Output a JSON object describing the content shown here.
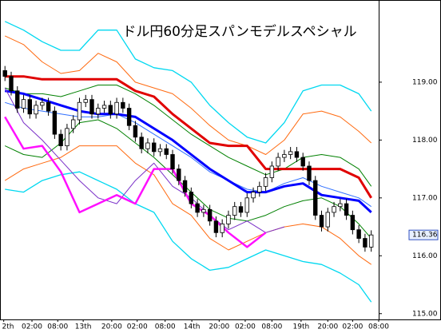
{
  "chart_data": {
    "type": "candlestick",
    "title": "ドル円60分足スパンモデルスペシャル",
    "xlim": [
      -0.8,
      60.2
    ],
    "ylim": [
      114.9,
      120.42
    ],
    "yticks": [
      {
        "value": 119,
        "label": "119.00"
      },
      {
        "value": 118,
        "label": "118.00"
      },
      {
        "value": 117,
        "label": "117.00"
      },
      {
        "value": 116,
        "label": "116.00"
      },
      {
        "value": 115,
        "label": "115.00"
      }
    ],
    "xticks": [
      {
        "value": -0.2,
        "label": "2th"
      },
      {
        "value": 4.35,
        "label": "02:00"
      },
      {
        "value": 8.5,
        "label": "08:00"
      },
      {
        "value": 12.6,
        "label": "13th"
      },
      {
        "value": 17.2,
        "label": "20:00"
      },
      {
        "value": 21.3,
        "label": "02:00"
      },
      {
        "value": 25.8,
        "label": "08:00"
      },
      {
        "value": 30.1,
        "label": "14th"
      },
      {
        "value": 34.5,
        "label": "20:00"
      },
      {
        "value": 38.7,
        "label": "02:00"
      },
      {
        "value": 43,
        "label": "08:00"
      },
      {
        "value": 47.7,
        "label": "19th"
      },
      {
        "value": 52,
        "label": "20:00"
      },
      {
        "value": 56,
        "label": "02:00"
      },
      {
        "value": 60.2,
        "label": "08:00"
      }
    ],
    "candles": {
      "x": [
        0,
        1,
        2,
        3,
        4,
        5,
        6,
        7,
        8,
        9,
        10,
        11,
        12,
        13,
        14,
        15,
        16,
        17,
        18,
        19,
        20,
        21,
        22,
        23,
        24,
        25,
        26,
        27,
        28,
        29,
        30,
        31,
        32,
        33,
        34,
        35,
        36,
        37,
        38,
        39,
        40,
        41,
        42,
        43,
        44,
        45,
        46,
        47,
        48,
        49,
        50,
        51,
        52,
        53,
        54,
        55,
        56,
        57,
        58,
        59
      ],
      "open": [
        119.2,
        119.1,
        118.85,
        118.55,
        118.7,
        118.45,
        118.6,
        118.65,
        118.5,
        118.1,
        117.9,
        118.2,
        118.35,
        118.65,
        118.7,
        118.45,
        118.55,
        118.6,
        118.45,
        118.65,
        118.55,
        118.25,
        118.05,
        117.85,
        117.95,
        117.8,
        117.85,
        117.75,
        117.5,
        117.3,
        117.1,
        116.9,
        116.75,
        116.8,
        116.6,
        116.4,
        116.55,
        116.7,
        116.85,
        116.75,
        117.0,
        117.1,
        117.2,
        117.35,
        117.55,
        117.7,
        117.75,
        117.8,
        117.7,
        117.55,
        117.3,
        116.7,
        116.5,
        116.75,
        116.85,
        116.9,
        116.7,
        116.45,
        116.3,
        116.15
      ],
      "high": [
        119.28,
        119.18,
        118.93,
        118.78,
        118.78,
        118.68,
        118.73,
        118.73,
        118.58,
        118.18,
        118.28,
        118.43,
        118.73,
        118.78,
        118.78,
        118.63,
        118.68,
        118.68,
        118.73,
        118.73,
        118.63,
        118.33,
        118.13,
        118.03,
        118.03,
        117.93,
        117.93,
        117.83,
        117.58,
        117.38,
        117.18,
        116.98,
        116.88,
        116.88,
        116.68,
        116.63,
        116.78,
        116.93,
        116.93,
        117.08,
        117.18,
        117.28,
        117.43,
        117.63,
        117.78,
        117.83,
        117.88,
        117.88,
        117.78,
        117.63,
        117.38,
        116.78,
        116.83,
        116.93,
        116.98,
        116.98,
        116.78,
        116.53,
        116.38,
        116.44
      ],
      "low": [
        119.02,
        118.77,
        118.47,
        118.47,
        118.37,
        118.37,
        118.52,
        118.42,
        118.02,
        117.82,
        117.82,
        118.12,
        118.27,
        118.57,
        118.37,
        118.37,
        118.47,
        118.37,
        118.37,
        118.47,
        118.17,
        117.97,
        117.77,
        117.77,
        117.72,
        117.72,
        117.67,
        117.42,
        117.22,
        117.02,
        116.82,
        116.67,
        116.67,
        116.52,
        116.32,
        116.32,
        116.47,
        116.62,
        116.67,
        116.67,
        116.92,
        117.02,
        117.12,
        117.27,
        117.47,
        117.62,
        117.67,
        117.62,
        117.47,
        117.22,
        116.62,
        116.42,
        116.42,
        116.67,
        116.77,
        116.62,
        116.37,
        116.22,
        116.07,
        116.07
      ],
      "close": [
        119.1,
        118.85,
        118.55,
        118.7,
        118.45,
        118.6,
        118.65,
        118.5,
        118.1,
        117.9,
        118.2,
        118.35,
        118.65,
        118.7,
        118.45,
        118.55,
        118.6,
        118.45,
        118.65,
        118.55,
        118.25,
        118.05,
        117.85,
        117.95,
        117.8,
        117.85,
        117.75,
        117.5,
        117.3,
        117.1,
        116.9,
        116.75,
        116.8,
        116.6,
        116.4,
        116.55,
        116.7,
        116.85,
        116.75,
        117.0,
        117.1,
        117.2,
        117.35,
        117.55,
        117.7,
        117.75,
        117.8,
        117.7,
        117.55,
        117.3,
        116.7,
        116.5,
        116.75,
        116.85,
        116.9,
        116.7,
        116.45,
        116.3,
        116.15,
        116.36
      ],
      "up_color": "#ffffff",
      "down_color": "#000000"
    },
    "x": [
      0,
      3,
      6,
      9,
      12,
      15,
      18,
      21,
      24,
      27,
      30,
      33,
      36,
      39,
      42,
      45,
      48,
      51,
      54,
      57,
      59
    ],
    "series": [
      {
        "color": "#00d8f0",
        "width": 1.3,
        "values": [
          120.05,
          119.9,
          119.7,
          119.55,
          119.55,
          119.9,
          119.9,
          119.4,
          119.25,
          119.2,
          119.0,
          118.6,
          118.3,
          118.05,
          117.95,
          118.3,
          118.85,
          118.95,
          118.95,
          118.8,
          118.5
        ]
      },
      {
        "color": "#00d8f0",
        "width": 1.3,
        "values": [
          117.15,
          117.1,
          117.3,
          117.4,
          117.45,
          117.3,
          117.15,
          116.9,
          116.75,
          116.25,
          115.95,
          115.75,
          115.8,
          115.95,
          116.1,
          116.0,
          115.9,
          115.85,
          115.7,
          115.5,
          115.2
        ]
      },
      {
        "color": "#ff6a10",
        "width": 1,
        "values": [
          119.8,
          119.65,
          119.35,
          119.15,
          119.2,
          119.5,
          119.35,
          119.0,
          118.9,
          118.8,
          118.55,
          118.25,
          118.0,
          117.9,
          117.75,
          118.0,
          118.45,
          118.5,
          118.4,
          118.15,
          117.95
        ]
      },
      {
        "color": "#ff6a10",
        "width": 1,
        "values": [
          117.3,
          117.5,
          117.6,
          117.7,
          117.9,
          117.9,
          117.9,
          117.6,
          117.4,
          116.9,
          116.7,
          116.3,
          116.1,
          116.25,
          116.4,
          116.5,
          116.55,
          116.5,
          116.3,
          116.0,
          115.85
        ]
      },
      {
        "color": "#008000",
        "width": 1,
        "values": [
          118.9,
          118.8,
          118.8,
          118.75,
          118.85,
          118.95,
          118.95,
          118.8,
          118.6,
          118.35,
          118.1,
          117.9,
          117.7,
          117.55,
          117.4,
          117.5,
          117.7,
          117.75,
          117.7,
          117.5,
          117.2
        ]
      },
      {
        "color": "#008000",
        "width": 1,
        "values": [
          117.9,
          117.75,
          117.7,
          117.95,
          118.3,
          118.35,
          118.2,
          117.95,
          117.7,
          117.4,
          117.1,
          116.8,
          116.65,
          116.6,
          116.7,
          116.85,
          116.95,
          117.0,
          116.85,
          116.55,
          116.3
        ]
      },
      {
        "color": "#3070ff",
        "width": 1,
        "values": [
          118.65,
          118.55,
          118.5,
          118.45,
          118.4,
          118.4,
          118.45,
          118.3,
          118.1,
          117.9,
          117.7,
          117.45,
          117.3,
          117.15,
          117.1,
          117.25,
          117.35,
          117.2,
          117.1,
          117.0,
          116.85
        ]
      },
      {
        "color": "#e00000",
        "width": 3,
        "values": [
          119.1,
          119.1,
          119.05,
          119.05,
          119.05,
          119.05,
          119.05,
          118.85,
          118.75,
          118.45,
          118.2,
          117.95,
          117.9,
          117.9,
          117.5,
          117.5,
          117.5,
          117.5,
          117.5,
          117.35,
          117.0
        ]
      },
      {
        "color": "#0000ff",
        "width": 3,
        "values": [
          118.85,
          118.8,
          118.7,
          118.6,
          118.5,
          118.45,
          118.45,
          118.4,
          118.2,
          118.0,
          117.75,
          117.5,
          117.3,
          117.1,
          117.1,
          117.2,
          117.25,
          117.05,
          117.0,
          116.95,
          116.75
        ]
      },
      {
        "color": "#7a30c8",
        "width": 1,
        "values": [
          118.9,
          118.3,
          118.0,
          117.65,
          117.3,
          117.0,
          116.9,
          117.3,
          117.6,
          117.2,
          117.0,
          116.7,
          116.45,
          116.6,
          116.4,
          116.5,
          null,
          null,
          null,
          null,
          null
        ]
      },
      {
        "color": "#ff10ff",
        "width": 2.5,
        "values": [
          118.4,
          117.85,
          117.9,
          117.45,
          116.75,
          116.9,
          117.05,
          116.9,
          117.5,
          117.5,
          116.9,
          116.7,
          116.4,
          116.15,
          116.4,
          null,
          null,
          null,
          null,
          null,
          null
        ]
      }
    ]
  }
}
